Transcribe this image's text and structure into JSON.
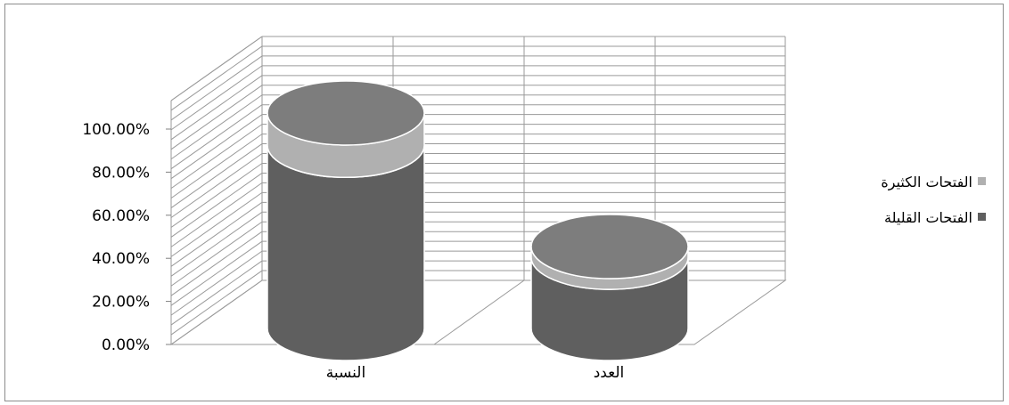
{
  "chart_data": {
    "type": "bar",
    "style": "3d-cylinder-stacked",
    "categories": [
      "النسبة",
      "العدد"
    ],
    "series": [
      {
        "name": "الفتحات القليلة",
        "values": [
          0.85,
          0.33
        ],
        "color": "#5f5f5f"
      },
      {
        "name": "الفتحات الكثيرة",
        "values": [
          0.15,
          0.05
        ],
        "color": "#b0b0b0"
      }
    ],
    "yticks": [
      "0.00%",
      "20.00%",
      "40.00%",
      "60.00%",
      "80.00%",
      "100.00%"
    ],
    "ylim": [
      0,
      1
    ],
    "grid": true,
    "legend_position": "right"
  }
}
